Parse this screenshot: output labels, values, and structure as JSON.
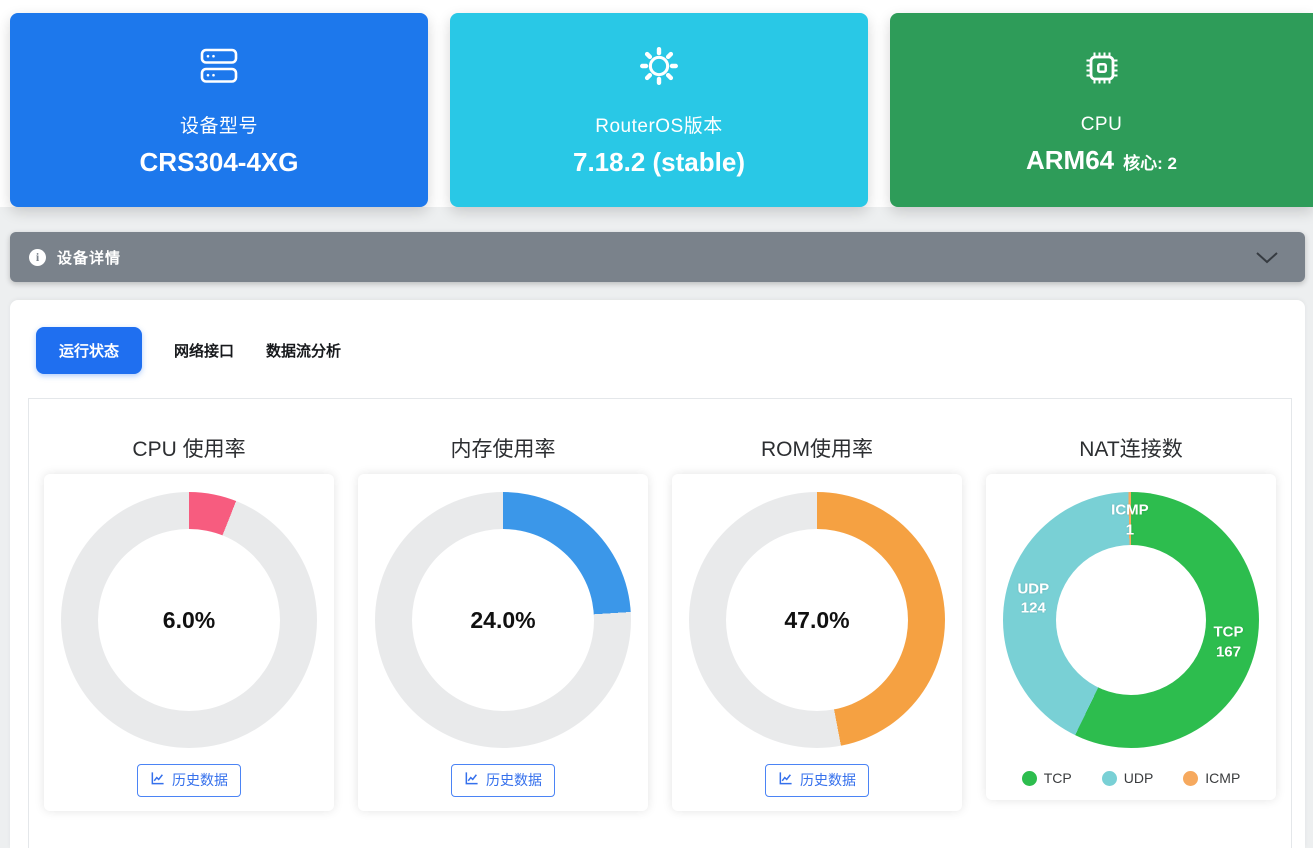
{
  "summary_cards": [
    {
      "icon": "server-icon",
      "label": "设备型号",
      "value": "CRS304-4XG",
      "bg": "#1d78ec"
    },
    {
      "icon": "gear-icon",
      "label": "RouterOS版本",
      "value": "7.18.2 (stable)",
      "bg": "#29c8e6"
    },
    {
      "icon": "cpu-chip-icon",
      "label": "CPU",
      "value": "ARM64",
      "extra": "核心: 2",
      "bg": "#2e9c59"
    }
  ],
  "accordion": {
    "title": "设备详情",
    "icon": "info-icon",
    "chevron": "chevron-down-icon"
  },
  "tabs": [
    {
      "label": "运行状态",
      "active": true
    },
    {
      "label": "网络接口",
      "active": false
    },
    {
      "label": "数据流分析",
      "active": false
    }
  ],
  "history_button": {
    "label": "历史数据",
    "icon": "line-chart-icon",
    "color": "#3570ec"
  },
  "colors": {
    "tab_active": "#1f6ff0",
    "accordion_bg": "#7a828b",
    "gauge_track": "#e9eaeb"
  },
  "chart_data": [
    {
      "type": "donut-gauge",
      "title": "CPU 使用率",
      "value_pct": 6.0,
      "center_label": "6.0%",
      "color": "#f75c7f",
      "track": "#e9eaeb"
    },
    {
      "type": "donut-gauge",
      "title": "内存使用率",
      "value_pct": 24.0,
      "center_label": "24.0%",
      "color": "#3b97e9",
      "track": "#e9eaeb"
    },
    {
      "type": "donut-gauge",
      "title": "ROM使用率",
      "value_pct": 47.0,
      "center_label": "47.0%",
      "color": "#f5a142",
      "track": "#e9eaeb"
    },
    {
      "type": "donut-pie",
      "title": "NAT连接数",
      "start_angle": "top",
      "direction": "clockwise",
      "slices": [
        {
          "name": "TCP",
          "value": 167,
          "color": "#2dbd4e"
        },
        {
          "name": "UDP",
          "value": 124,
          "color": "#79d0d5"
        },
        {
          "name": "ICMP",
          "value": 1,
          "color": "#f6a95e"
        }
      ],
      "legend": [
        "TCP",
        "UDP",
        "ICMP"
      ],
      "legend_position": "bottom"
    }
  ]
}
